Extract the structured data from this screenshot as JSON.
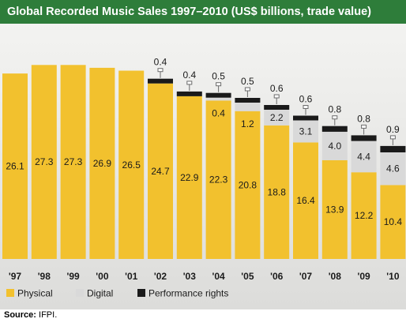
{
  "chart_data": {
    "type": "bar",
    "stacked": true,
    "title": "Global Recorded Music Sales 1997–2010 (US$ billions, trade value)",
    "categories": [
      "'97",
      "'98",
      "'99",
      "'00",
      "'01",
      "'02",
      "'03",
      "'04",
      "'05",
      "'06",
      "'07",
      "'08",
      "'09",
      "'10"
    ],
    "series": [
      {
        "name": "Physical",
        "color": "#f2c12e",
        "values": [
          26.1,
          27.3,
          27.3,
          26.9,
          26.5,
          24.7,
          22.9,
          22.3,
          20.8,
          18.8,
          16.4,
          13.9,
          12.2,
          10.4
        ]
      },
      {
        "name": "Digital",
        "color": "#d9d9d9",
        "values": [
          null,
          null,
          null,
          null,
          null,
          null,
          null,
          0.4,
          1.2,
          2.2,
          3.1,
          4.0,
          4.4,
          4.6
        ]
      },
      {
        "name": "Performance rights",
        "color": "#1a1a1a",
        "values": [
          null,
          null,
          null,
          null,
          null,
          0.4,
          0.4,
          0.5,
          0.5,
          0.6,
          0.6,
          0.8,
          0.8,
          0.9
        ]
      }
    ],
    "ylim": [
      0,
      28
    ],
    "legend": "bottom-left",
    "grid": false
  },
  "footer": {
    "source_label": "Source:",
    "source_value": "IFPI."
  }
}
